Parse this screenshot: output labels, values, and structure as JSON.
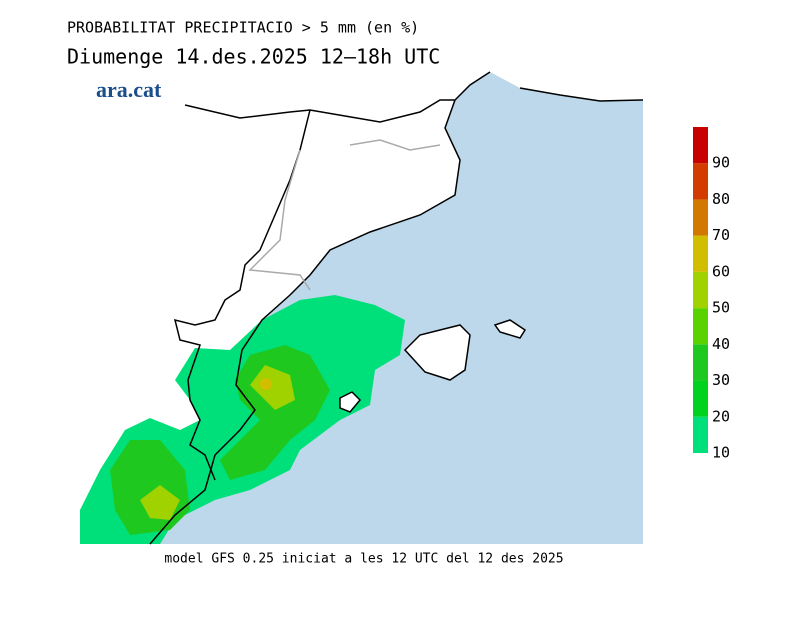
{
  "header": {
    "title": "PROBABILITAT PRECIPITACIO > 5 mm (en %)",
    "subtitle": "Diumenge  14.des.2025 12‒18h UTC",
    "logo": "ara.cat"
  },
  "legend": {
    "lim": [
      10,
      100
    ],
    "ticks": [
      10,
      20,
      30,
      40,
      50,
      60,
      70,
      80,
      90
    ],
    "colors": [
      "#00e07a",
      "#00d21e",
      "#1ec81e",
      "#5ad200",
      "#a0d200",
      "#d2be00",
      "#d27800",
      "#d23c00",
      "#c80000"
    ]
  },
  "footer": "model GFS 0.25 iniciat a les 12 UTC del 12 des 2025"
}
